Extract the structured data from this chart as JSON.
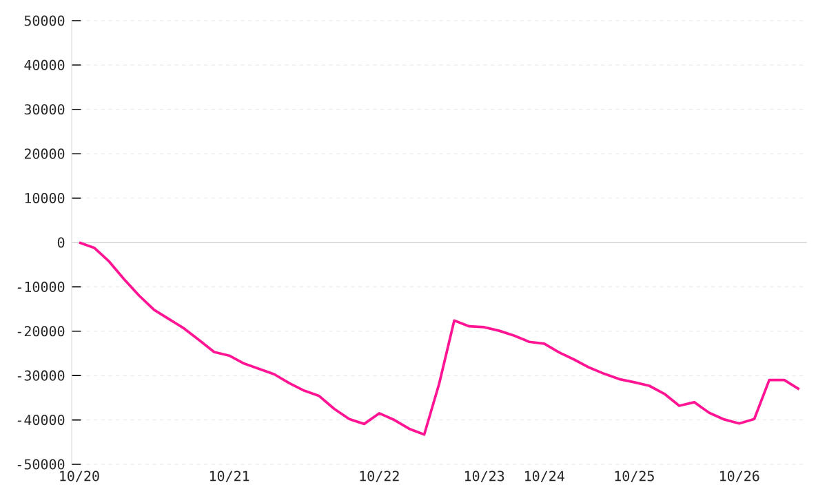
{
  "chart_data": {
    "type": "line",
    "categories": [
      "10/20",
      null,
      null,
      null,
      null,
      null,
      null,
      null,
      null,
      null,
      "10/21",
      null,
      null,
      null,
      null,
      null,
      null,
      null,
      null,
      null,
      "10/22",
      null,
      null,
      null,
      null,
      null,
      null,
      "10/23",
      null,
      null,
      null,
      "10/24",
      null,
      null,
      null,
      null,
      null,
      "10/25",
      null,
      null,
      null,
      null,
      null,
      null,
      "10/26",
      null,
      null,
      null,
      null
    ],
    "series": [
      {
        "color": "#ff1493",
        "values": [
          0,
          -1200,
          -4300,
          -8300,
          -12000,
          -15200,
          -17300,
          -19400,
          -22000,
          -24700,
          -25500,
          -27300,
          -28500,
          -29700,
          -31700,
          -33400,
          -34600,
          -37500,
          -39800,
          -40900,
          -38500,
          -40000,
          -42000,
          -43300,
          -31800,
          -17600,
          -18900,
          -19100,
          -19900,
          -21000,
          -22400,
          -22800,
          -24800,
          -26400,
          -28200,
          -29600,
          -30800,
          -31500,
          -32300,
          -34100,
          -36800,
          -36000,
          -38400,
          -39900,
          -40800,
          -39800,
          -31000,
          -31000,
          -33100
        ]
      }
    ],
    "ylim": [
      -50000,
      50000
    ],
    "yticks": [
      -50000,
      -40000,
      -30000,
      -20000,
      -10000,
      0,
      10000,
      20000,
      30000,
      40000,
      50000
    ],
    "grid": "y",
    "ref_lines": [
      {
        "axis": "y",
        "value": 0,
        "color": "#dddddd"
      }
    ]
  }
}
